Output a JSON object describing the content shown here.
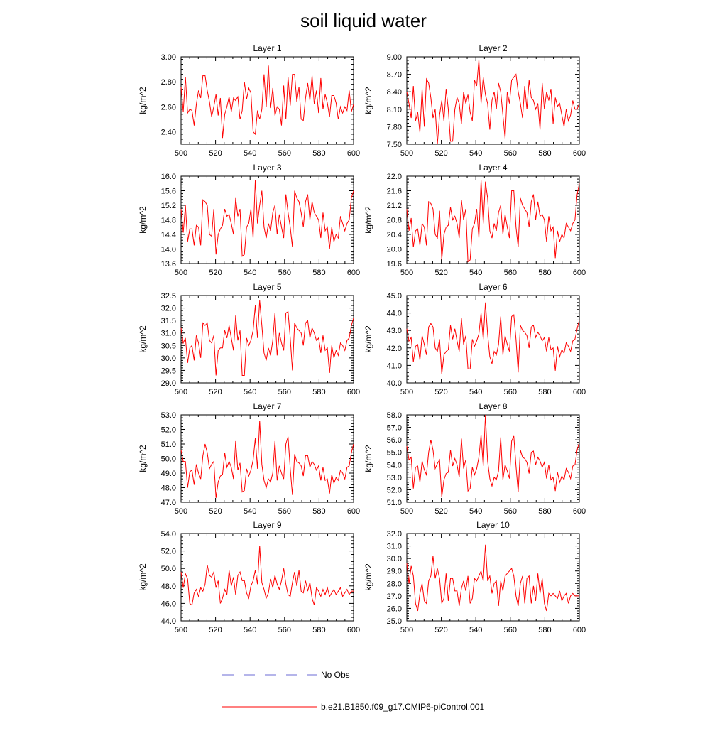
{
  "chart_data": {
    "type": "line",
    "title": "soil liquid water",
    "xlabel": "",
    "ylabel": "kg/m^2",
    "xlim": [
      500,
      600
    ],
    "xticks": [
      "500",
      "520",
      "540",
      "560",
      "580",
      "600"
    ],
    "legend": {
      "position": "bottom",
      "entries": [
        {
          "label": "No Obs",
          "color": "#6b6bd6",
          "style": "dashed"
        },
        {
          "label": "b.e21.B1850.f09_g17.CMIP6-piControl.001",
          "color": "#ff0000",
          "style": "solid"
        }
      ]
    },
    "panels": [
      {
        "title": "Layer 1",
        "ylabel": "kg/m^2",
        "ylim": [
          2.3,
          3.0
        ],
        "yticks": [
          "2.40",
          "2.60",
          "2.80",
          "3.00"
        ],
        "color": "#ff0000",
        "values": [
          2.76,
          2.56,
          2.84,
          2.55,
          2.58,
          2.57,
          2.45,
          2.62,
          2.73,
          2.67,
          2.85,
          2.85,
          2.73,
          2.64,
          2.52,
          2.6,
          2.7,
          2.53,
          2.67,
          2.35,
          2.54,
          2.6,
          2.68,
          2.56,
          2.67,
          2.65,
          2.68,
          2.5,
          2.57,
          2.8,
          2.66,
          2.75,
          2.71,
          2.4,
          2.38,
          2.57,
          2.5,
          2.58,
          2.86,
          2.6,
          2.93,
          2.59,
          2.75,
          2.53,
          2.6,
          2.58,
          2.45,
          2.77,
          2.5,
          2.84,
          2.61,
          2.86,
          2.86,
          2.64,
          2.76,
          2.5,
          2.49,
          2.67,
          2.79,
          2.65,
          2.85,
          2.62,
          2.73,
          2.55,
          2.83,
          2.58,
          2.7,
          2.63,
          2.52,
          2.69,
          2.69,
          2.63,
          2.5,
          2.6,
          2.55,
          2.6,
          2.57,
          2.73,
          2.56,
          2.62
        ]
      },
      {
        "title": "Layer 2",
        "ylabel": "kg/m^2",
        "ylim": [
          7.5,
          9.0
        ],
        "yticks": [
          "7.50",
          "7.80",
          "8.10",
          "8.40",
          "8.70",
          "9.00"
        ],
        "color": "#ff0000",
        "values": [
          8.4,
          8.2,
          7.95,
          8.5,
          7.9,
          8.05,
          7.7,
          8.45,
          7.8,
          8.62,
          8.55,
          8.3,
          7.95,
          8.1,
          7.5,
          8.0,
          8.25,
          7.9,
          8.45,
          8.1,
          7.55,
          7.55,
          8.1,
          8.3,
          8.2,
          7.85,
          8.4,
          8.2,
          8.35,
          8.05,
          7.9,
          8.6,
          8.5,
          8.95,
          8.2,
          8.65,
          8.35,
          8.2,
          7.75,
          8.25,
          8.4,
          8.1,
          8.55,
          8.4,
          8.0,
          7.6,
          8.4,
          8.2,
          8.6,
          8.65,
          8.7,
          8.4,
          8.2,
          7.95,
          8.5,
          8.1,
          8.6,
          8.3,
          8.25,
          8.1,
          8.2,
          7.75,
          8.55,
          8.1,
          8.4,
          8.25,
          8.45,
          7.85,
          8.3,
          8.15,
          8.2,
          8.0,
          7.8,
          8.1,
          7.9,
          8.0,
          8.25,
          8.1,
          8.1,
          8.2
        ]
      },
      {
        "title": "Layer 3",
        "ylabel": "kg/m^2",
        "ylim": [
          13.6,
          16.0
        ],
        "yticks": [
          "13.6",
          "14.0",
          "14.4",
          "14.8",
          "15.2",
          "15.6",
          "16.0"
        ],
        "color": "#ff0000",
        "values": [
          15.1,
          14.45,
          15.2,
          14.2,
          14.55,
          14.55,
          14.1,
          14.65,
          14.6,
          14.1,
          15.35,
          15.3,
          15.2,
          14.4,
          14.35,
          15.1,
          13.85,
          14.4,
          14.55,
          14.65,
          15.1,
          14.9,
          14.95,
          14.7,
          14.4,
          15.4,
          14.9,
          15.1,
          13.8,
          13.85,
          14.6,
          14.7,
          15.1,
          14.3,
          15.9,
          14.7,
          15.2,
          15.6,
          14.6,
          14.3,
          14.7,
          14.5,
          15.0,
          15.2,
          14.4,
          14.95,
          14.6,
          14.3,
          15.5,
          15.0,
          14.6,
          14.05,
          15.6,
          15.4,
          15.3,
          15.0,
          14.6,
          15.3,
          15.5,
          14.8,
          15.3,
          15.0,
          14.9,
          14.8,
          14.3,
          15.0,
          14.5,
          14.6,
          14.0,
          14.6,
          14.2,
          14.4,
          14.3,
          14.9,
          14.7,
          14.5,
          14.7,
          14.8,
          15.4,
          15.6
        ]
      },
      {
        "title": "Layer 4",
        "ylabel": "kg/m^2",
        "ylim": [
          19.6,
          22.0
        ],
        "yticks": [
          "19.6",
          "20.0",
          "20.4",
          "20.8",
          "21.2",
          "21.6",
          "22.0"
        ],
        "color": "#ff0000",
        "values": [
          21.1,
          20.5,
          20.85,
          20.05,
          20.5,
          20.55,
          20.1,
          20.7,
          20.6,
          20.1,
          21.3,
          21.25,
          21.1,
          20.4,
          20.3,
          21.05,
          19.7,
          20.4,
          20.6,
          20.65,
          21.15,
          20.8,
          20.9,
          20.7,
          20.3,
          21.35,
          20.8,
          21.1,
          19.65,
          19.7,
          20.55,
          20.7,
          21.1,
          20.3,
          21.9,
          20.7,
          21.85,
          21.4,
          20.5,
          20.3,
          20.7,
          20.5,
          21.0,
          21.2,
          20.4,
          20.95,
          20.6,
          20.3,
          21.6,
          21.6,
          20.6,
          20.05,
          21.4,
          21.2,
          21.1,
          21.0,
          20.6,
          21.3,
          21.5,
          20.8,
          21.3,
          20.9,
          20.95,
          20.8,
          20.2,
          20.9,
          20.5,
          20.6,
          19.75,
          20.5,
          20.2,
          20.4,
          20.3,
          20.7,
          20.6,
          20.5,
          20.7,
          20.8,
          21.5,
          21.8
        ]
      },
      {
        "title": "Layer 5",
        "ylabel": "kg/m^2",
        "ylim": [
          29.0,
          32.5
        ],
        "yticks": [
          "29.0",
          "29.5",
          "30.0",
          "30.5",
          "31.0",
          "31.5",
          "32.0",
          "32.5"
        ],
        "color": "#ff0000",
        "values": [
          31.2,
          30.6,
          30.8,
          29.8,
          30.4,
          30.5,
          29.9,
          30.9,
          30.6,
          30.0,
          31.4,
          31.3,
          31.4,
          30.7,
          30.6,
          30.9,
          29.3,
          30.3,
          30.4,
          30.4,
          31.1,
          30.8,
          31.3,
          30.8,
          30.3,
          31.7,
          30.7,
          31.1,
          29.3,
          29.3,
          30.8,
          30.5,
          30.7,
          31.1,
          32.1,
          30.8,
          32.3,
          31.3,
          30.2,
          29.9,
          30.4,
          30.1,
          30.7,
          31.8,
          30.1,
          31.0,
          30.6,
          30.3,
          31.8,
          31.85,
          30.8,
          29.5,
          31.4,
          31.2,
          31.1,
          31.0,
          30.5,
          31.4,
          31.5,
          30.8,
          31.2,
          31.0,
          30.7,
          30.8,
          30.2,
          30.9,
          30.3,
          30.4,
          29.4,
          30.5,
          30.0,
          30.3,
          30.1,
          30.6,
          30.5,
          30.3,
          30.7,
          30.8,
          31.3,
          31.6
        ]
      },
      {
        "title": "Layer 6",
        "ylabel": "kg/m^2",
        "ylim": [
          40.0,
          45.0
        ],
        "yticks": [
          "40.0",
          "41.0",
          "42.0",
          "43.0",
          "44.0",
          "45.0"
        ],
        "color": "#ff0000",
        "values": [
          43.1,
          42.4,
          42.6,
          41.2,
          42.1,
          42.2,
          41.3,
          42.7,
          42.2,
          41.6,
          43.2,
          43.4,
          43.2,
          42.0,
          41.8,
          42.5,
          40.5,
          41.6,
          41.8,
          41.9,
          43.3,
          42.5,
          43.1,
          42.4,
          41.8,
          43.7,
          42.2,
          42.7,
          40.8,
          40.8,
          42.5,
          42.1,
          42.4,
          42.8,
          44.0,
          42.5,
          44.6,
          42.8,
          41.5,
          41.1,
          41.8,
          41.6,
          42.2,
          43.8,
          41.6,
          42.7,
          42.2,
          41.8,
          43.8,
          43.9,
          42.5,
          40.6,
          43.3,
          43.0,
          42.9,
          42.7,
          42.0,
          43.2,
          43.3,
          42.6,
          42.9,
          42.7,
          42.4,
          42.6,
          41.8,
          42.6,
          41.9,
          42.0,
          40.7,
          42.1,
          41.5,
          41.9,
          41.7,
          42.3,
          42.1,
          41.8,
          42.4,
          42.5,
          43.1,
          43.6
        ]
      },
      {
        "title": "Layer 7",
        "ylabel": "kg/m^2",
        "ylim": [
          47.0,
          53.0
        ],
        "yticks": [
          "47.0",
          "48.0",
          "49.0",
          "50.0",
          "51.0",
          "52.0",
          "53.0"
        ],
        "color": "#ff0000",
        "values": [
          50.6,
          49.8,
          49.8,
          48.0,
          49.1,
          49.2,
          48.2,
          49.6,
          49.0,
          48.6,
          50.2,
          51.0,
          50.4,
          49.3,
          49.6,
          49.8,
          47.3,
          48.4,
          48.8,
          48.9,
          50.4,
          49.4,
          49.8,
          49.4,
          48.6,
          51.2,
          49.2,
          49.7,
          47.7,
          47.8,
          49.3,
          48.8,
          49.2,
          49.9,
          51.4,
          49.3,
          52.6,
          49.6,
          48.5,
          48.0,
          48.6,
          48.4,
          49.0,
          51.2,
          48.5,
          49.5,
          49.0,
          48.6,
          51.0,
          51.5,
          49.3,
          47.5,
          50.3,
          49.8,
          49.7,
          49.5,
          48.8,
          50.2,
          50.2,
          49.4,
          49.8,
          49.6,
          49.2,
          49.5,
          48.5,
          49.4,
          48.5,
          48.6,
          47.6,
          48.9,
          48.3,
          48.7,
          48.5,
          49.2,
          49.0,
          48.6,
          49.4,
          49.5,
          50.4,
          51.0
        ]
      },
      {
        "title": "Layer 8",
        "ylabel": "kg/m^2",
        "ylim": [
          51.0,
          58.0
        ],
        "yticks": [
          "51.0",
          "52.0",
          "53.0",
          "54.0",
          "55.0",
          "56.0",
          "57.0",
          "58.0"
        ],
        "color": "#ff0000",
        "values": [
          55.5,
          54.4,
          54.6,
          52.1,
          53.8,
          53.9,
          52.6,
          54.3,
          53.6,
          53.2,
          55.0,
          56.0,
          55.2,
          53.7,
          54.1,
          54.4,
          51.4,
          52.8,
          53.3,
          53.4,
          55.2,
          53.9,
          54.5,
          54.0,
          53.0,
          56.1,
          53.7,
          54.4,
          51.9,
          52.1,
          53.8,
          53.2,
          53.7,
          54.6,
          56.4,
          53.9,
          58.0,
          54.3,
          52.9,
          52.3,
          53.0,
          52.8,
          53.5,
          56.2,
          52.8,
          54.0,
          53.5,
          52.9,
          55.9,
          56.3,
          53.9,
          51.8,
          55.2,
          54.6,
          54.5,
          54.2,
          53.3,
          55.0,
          55.1,
          54.0,
          54.6,
          54.3,
          53.8,
          54.2,
          52.9,
          54.0,
          52.8,
          53.0,
          51.9,
          53.4,
          52.6,
          53.1,
          52.8,
          53.7,
          53.4,
          52.9,
          53.9,
          54.0,
          55.2,
          55.8
        ]
      },
      {
        "title": "Layer 9",
        "ylabel": "kg/m^2",
        "ylim": [
          44.0,
          54.0
        ],
        "yticks": [
          "44.0",
          "46.0",
          "48.0",
          "50.0",
          "52.0",
          "54.0"
        ],
        "color": "#ff0000",
        "values": [
          49.6,
          47.8,
          49.4,
          48.8,
          46.0,
          45.8,
          47.2,
          47.6,
          46.8,
          47.8,
          47.4,
          48.2,
          50.4,
          49.2,
          49.0,
          49.6,
          47.8,
          48.6,
          46.0,
          46.6,
          47.6,
          47.0,
          49.8,
          48.0,
          49.0,
          47.0,
          49.2,
          49.6,
          48.6,
          48.6,
          47.2,
          46.6,
          48.0,
          48.6,
          49.8,
          48.2,
          52.6,
          48.4,
          47.6,
          46.6,
          47.2,
          48.8,
          47.8,
          49.2,
          48.2,
          47.6,
          48.6,
          50.0,
          48.2,
          47.0,
          46.8,
          48.4,
          49.6,
          48.0,
          49.8,
          47.4,
          47.2,
          48.6,
          47.4,
          48.4,
          46.6,
          45.8,
          47.8,
          47.4,
          46.8,
          47.6,
          47.0,
          47.8,
          46.8,
          47.2,
          47.6,
          47.0,
          47.4,
          47.8,
          46.8,
          47.2,
          47.6,
          47.0,
          47.4,
          47.4
        ]
      },
      {
        "title": "Layer 10",
        "ylabel": "kg/m^2",
        "ylim": [
          25.0,
          32.0
        ],
        "yticks": [
          "25.0",
          "26.0",
          "27.0",
          "28.0",
          "29.0",
          "30.0",
          "31.0",
          "32.0"
        ],
        "color": "#ff0000",
        "values": [
          29.6,
          28.0,
          29.4,
          28.6,
          26.4,
          25.8,
          27.2,
          28.0,
          26.6,
          26.4,
          28.2,
          28.6,
          30.2,
          28.4,
          29.2,
          28.4,
          26.4,
          26.8,
          28.8,
          26.6,
          28.4,
          28.4,
          27.4,
          27.4,
          26.2,
          27.6,
          28.2,
          27.4,
          28.6,
          26.4,
          26.8,
          28.4,
          28.2,
          28.6,
          29.0,
          28.2,
          31.1,
          28.2,
          28.6,
          27.2,
          28.0,
          28.2,
          26.2,
          28.2,
          27.4,
          28.6,
          28.8,
          29.0,
          29.2,
          28.6,
          27.0,
          26.2,
          28.0,
          28.6,
          26.4,
          28.4,
          28.6,
          26.4,
          27.8,
          26.6,
          28.8,
          27.2,
          28.4,
          26.4,
          25.8,
          27.2,
          27.0,
          27.2,
          27.0,
          26.8,
          27.4,
          26.6,
          27.0,
          27.2,
          26.4,
          27.0,
          27.2,
          27.0,
          27.0,
          27.0
        ]
      }
    ]
  }
}
